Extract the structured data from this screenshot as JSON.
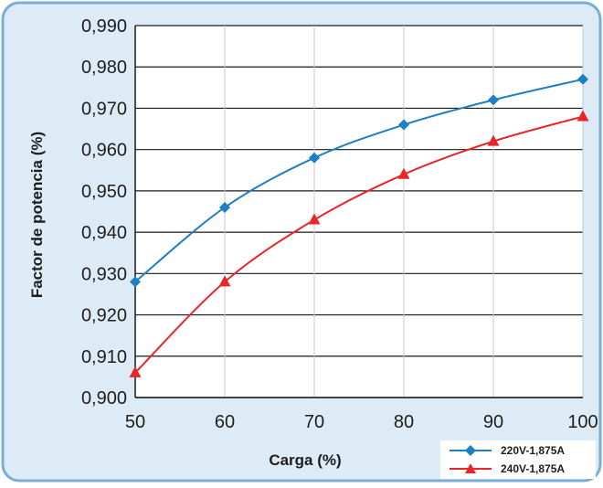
{
  "chart_data": {
    "type": "line",
    "xlabel": "Carga (%)",
    "ylabel": "Factor de potencia (%)",
    "x": [
      50,
      60,
      70,
      80,
      90,
      100
    ],
    "xticks": [
      "50",
      "60",
      "70",
      "80",
      "90",
      "100"
    ],
    "yticks": [
      "0,900",
      "0,910",
      "0,920",
      "0,930",
      "0,940",
      "0,950",
      "0,960",
      "0,970",
      "0,980",
      "0,990"
    ],
    "xlim": [
      50,
      100
    ],
    "ylim": [
      0.9,
      0.99
    ],
    "grid": true,
    "legend_position": "bottom-right",
    "series": [
      {
        "name": "220V-1,875A",
        "color": "#1f7fc4",
        "marker": "diamond",
        "values": [
          0.928,
          0.946,
          0.958,
          0.966,
          0.972,
          0.977
        ]
      },
      {
        "name": "240V-1,875A",
        "color": "#e8262a",
        "marker": "triangle",
        "values": [
          0.906,
          0.928,
          0.943,
          0.954,
          0.962,
          0.968
        ]
      }
    ]
  },
  "colors": {
    "frame_border": "#7aaed6",
    "frame_fill": "#dcebf6",
    "plot_bg": "#ffffff",
    "grid": "#1a1a1a"
  }
}
